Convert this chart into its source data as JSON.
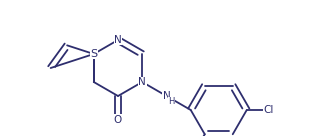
{
  "background": "#ffffff",
  "line_color": "#2e2e6e",
  "line_width": 1.3,
  "font_size": 7.5,
  "figsize": [
    3.18,
    1.36
  ],
  "dpi": 100,
  "xlim": [
    0.0,
    3.18
  ],
  "ylim": [
    0.0,
    1.36
  ]
}
